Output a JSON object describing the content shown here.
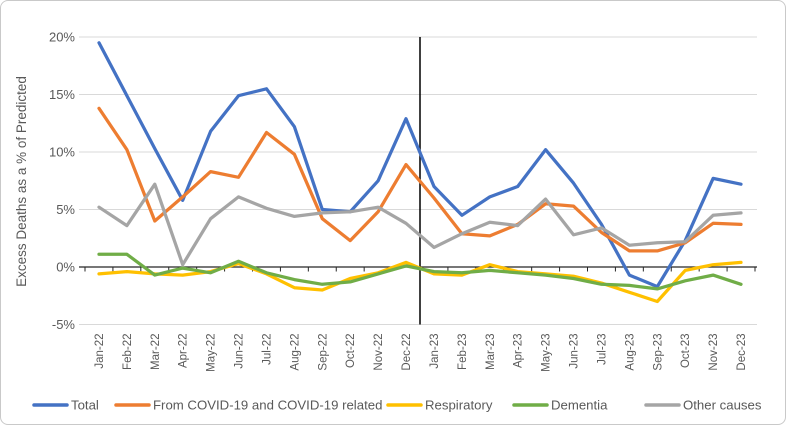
{
  "chart_data": {
    "type": "line",
    "title": "",
    "xlabel": "",
    "ylabel": "Excess Deaths as a % of Predicted",
    "ylim": [
      -5,
      20
    ],
    "grid": true,
    "legend_position": "bottom",
    "yticks": [
      {
        "value": 20,
        "label": "20%"
      },
      {
        "value": 15,
        "label": "15%"
      },
      {
        "value": 10,
        "label": "10%"
      },
      {
        "value": 5,
        "label": "5%"
      },
      {
        "value": 0,
        "label": "0%"
      },
      {
        "value": -5,
        "label": "-5%"
      }
    ],
    "x": [
      "Jan-22",
      "Feb-22",
      "Mar-22",
      "Apr-22",
      "May-22",
      "Jun-22",
      "Jul-22",
      "Aug-22",
      "Sep-22",
      "Oct-22",
      "Nov-22",
      "Dec-22",
      "Jan-23",
      "Feb-23",
      "Mar-23",
      "Apr-23",
      "May-23",
      "Jun-23",
      "Jul-23",
      "Aug-23",
      "Sep-23",
      "Oct-23",
      "Nov-23",
      "Dec-23"
    ],
    "series": [
      {
        "name": "Total",
        "color": "#4472C4",
        "values": [
          19.5,
          14.9,
          10.3,
          5.8,
          11.8,
          14.9,
          15.5,
          12.2,
          5.0,
          4.8,
          7.5,
          12.9,
          7.0,
          4.5,
          6.1,
          7.0,
          10.2,
          7.3,
          3.7,
          -0.7,
          -1.7,
          2.3,
          7.7,
          7.2
        ]
      },
      {
        "name": "From COVID-19 and COVID-19 related",
        "color": "#ED7D31",
        "values": [
          13.8,
          10.2,
          4.0,
          6.1,
          8.3,
          7.8,
          11.7,
          9.8,
          4.2,
          2.3,
          4.8,
          8.9,
          6.0,
          2.9,
          2.7,
          3.7,
          5.5,
          5.3,
          3.0,
          1.4,
          1.4,
          2.1,
          3.8,
          3.7
        ]
      },
      {
        "name": "Respiratory",
        "color": "#FFC000",
        "values": [
          -0.6,
          -0.4,
          -0.6,
          -0.7,
          -0.4,
          0.3,
          -0.6,
          -1.8,
          -2.0,
          -1.0,
          -0.5,
          0.4,
          -0.6,
          -0.7,
          0.2,
          -0.4,
          -0.6,
          -0.8,
          -1.4,
          -2.2,
          -3.0,
          -0.3,
          0.2,
          0.4
        ]
      },
      {
        "name": "Dementia",
        "color": "#70AD47",
        "values": [
          1.1,
          1.1,
          -0.7,
          -0.1,
          -0.5,
          0.5,
          -0.5,
          -1.1,
          -1.5,
          -1.3,
          -0.6,
          0.1,
          -0.4,
          -0.5,
          -0.3,
          -0.5,
          -0.7,
          -1.0,
          -1.5,
          -1.6,
          -1.9,
          -1.2,
          -0.7,
          -1.5
        ]
      },
      {
        "name": "Other causes",
        "color": "#A5A5A5",
        "values": [
          5.2,
          3.6,
          7.2,
          0.2,
          4.2,
          6.1,
          5.1,
          4.4,
          4.7,
          4.8,
          5.2,
          3.8,
          1.7,
          2.9,
          3.9,
          3.6,
          5.9,
          2.8,
          3.4,
          1.9,
          2.1,
          2.2,
          4.5,
          4.7
        ]
      }
    ],
    "annotations": [
      {
        "type": "vline",
        "between": [
          "Dec-22",
          "Jan-23"
        ],
        "color": "#000000"
      }
    ],
    "colors": {
      "gridline": "#D9D9D9",
      "zero_axis": "#262626",
      "tick_label": "#595959",
      "legend_text": "#595959"
    }
  }
}
